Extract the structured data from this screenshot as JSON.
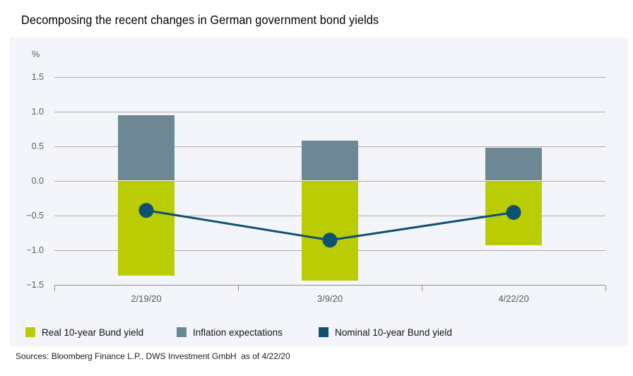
{
  "title": "Decomposing the recent changes in German government bond yields",
  "footer": {
    "sources": "Sources: Bloomberg Finance L.P., DWS Investment GmbH  as of 4/22/20"
  },
  "colors": {
    "real_bar_green": "#b9cc04",
    "inflation_bar_gray": "#6d8894",
    "nominal_line_blue": "#0f5170",
    "panel_background": "#f4f5fa",
    "gridline": "#ababab",
    "axis": "#8f8f8f",
    "tick_text": "#595c60"
  },
  "chart_data": {
    "type": "bar",
    "subtype": "stacked-bars-with-line-overlay",
    "categories": [
      "2/19/20",
      "3/9/20",
      "4/22/20"
    ],
    "series": [
      {
        "name": "Real 10-year Bund yield",
        "render": "bar",
        "color": "#b9cc04",
        "values": [
          -1.37,
          -1.44,
          -0.93
        ]
      },
      {
        "name": "Inflation expectations",
        "render": "bar",
        "color": "#6d8894",
        "values": [
          0.94,
          0.58,
          0.47
        ]
      },
      {
        "name": "Nominal 10-year Bund yield",
        "render": "line",
        "color": "#0f5170",
        "values": [
          -0.43,
          -0.86,
          -0.46
        ]
      }
    ],
    "title": "Decomposing the recent changes in German government bond yields",
    "xlabel": "",
    "ylabel": "%",
    "ylim": [
      -1.5,
      1.5
    ],
    "yticks": [
      1.5,
      1.0,
      0.5,
      0.0,
      -0.5,
      -1.0,
      -1.5
    ],
    "ytick_labels": [
      "1.5",
      "1.0",
      "0.5",
      "0.0",
      "−0.5",
      "−1.0",
      "−1.5"
    ],
    "grid": true,
    "legend_position": "bottom"
  }
}
